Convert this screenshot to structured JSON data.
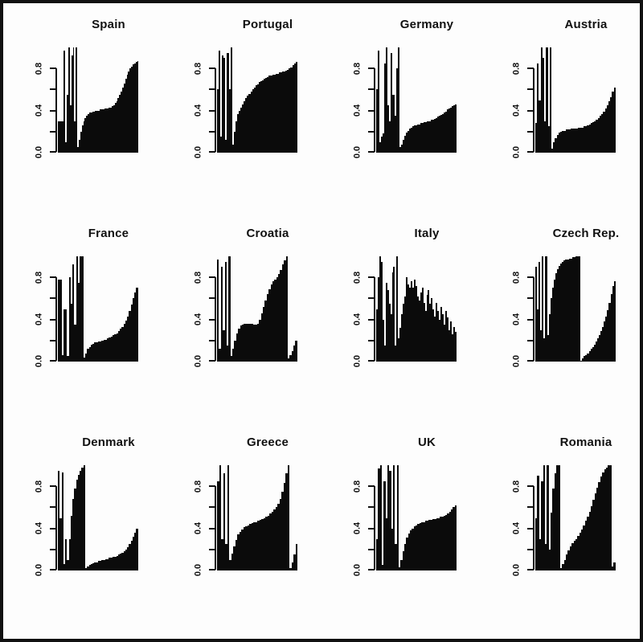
{
  "figure": {
    "background_color": "#fdfdfd",
    "frame_color": "#111111",
    "bar_color": "#0b0b0b",
    "axis_color": "#111111"
  },
  "chart_data": {
    "type": "bar",
    "description": "Grid of 12 black bar-profile plots, one per country",
    "layout": {
      "rows": 3,
      "cols": 4
    },
    "ylim": [
      0,
      1
    ],
    "grid": "off",
    "legend": "none",
    "axis": {
      "tick_labels": [
        "0.0",
        "0.4",
        "0.8"
      ],
      "tick_values": [
        0.0,
        0.2,
        0.4,
        0.6,
        0.8
      ],
      "labeled_values": [
        0.0,
        0.4,
        0.8
      ]
    },
    "panels": [
      {
        "title": "Spain",
        "values": [
          0.3,
          0.3,
          0.3,
          0.3,
          0.97,
          0.1,
          0.55,
          1.0,
          0.45,
          0.92,
          1.0,
          0.3,
          1.0,
          0.05,
          0.12,
          0.2,
          0.26,
          0.3,
          0.33,
          0.35,
          0.37,
          0.38,
          0.38,
          0.39,
          0.39,
          0.4,
          0.4,
          0.4,
          0.41,
          0.41,
          0.41,
          0.42,
          0.42,
          0.42,
          0.43,
          0.43,
          0.44,
          0.45,
          0.47,
          0.49,
          0.52,
          0.55,
          0.58,
          0.62,
          0.66,
          0.7,
          0.74,
          0.77,
          0.8,
          0.82,
          0.84,
          0.85,
          0.86,
          0.87
        ]
      },
      {
        "title": "Portugal",
        "values": [
          0.6,
          0.97,
          0.15,
          0.92,
          0.9,
          0.12,
          0.95,
          0.6,
          1.0,
          0.08,
          0.2,
          0.3,
          0.37,
          0.4,
          0.43,
          0.46,
          0.49,
          0.52,
          0.54,
          0.56,
          0.58,
          0.6,
          0.62,
          0.64,
          0.65,
          0.67,
          0.68,
          0.69,
          0.7,
          0.71,
          0.72,
          0.73,
          0.73,
          0.74,
          0.74,
          0.75,
          0.75,
          0.76,
          0.76,
          0.77,
          0.77,
          0.78,
          0.79,
          0.8,
          0.81,
          0.83,
          0.85,
          0.86
        ]
      },
      {
        "title": "Germany",
        "values": [
          0.6,
          0.97,
          0.1,
          0.15,
          0.18,
          0.85,
          1.0,
          0.45,
          0.3,
          0.95,
          0.55,
          0.35,
          0.8,
          1.0,
          0.05,
          0.08,
          0.12,
          0.16,
          0.19,
          0.21,
          0.23,
          0.24,
          0.25,
          0.26,
          0.26,
          0.27,
          0.27,
          0.28,
          0.28,
          0.29,
          0.29,
          0.3,
          0.3,
          0.31,
          0.31,
          0.32,
          0.33,
          0.34,
          0.35,
          0.36,
          0.37,
          0.38,
          0.39,
          0.41,
          0.42,
          0.43,
          0.44,
          0.45,
          0.46
        ]
      },
      {
        "title": "Austria",
        "values": [
          0.28,
          0.85,
          0.5,
          1.0,
          0.9,
          0.3,
          1.0,
          0.25,
          1.0,
          0.04,
          0.1,
          0.14,
          0.17,
          0.19,
          0.2,
          0.21,
          0.21,
          0.22,
          0.22,
          0.22,
          0.23,
          0.23,
          0.23,
          0.23,
          0.24,
          0.24,
          0.24,
          0.25,
          0.25,
          0.26,
          0.27,
          0.28,
          0.29,
          0.3,
          0.31,
          0.33,
          0.35,
          0.37,
          0.39,
          0.42,
          0.45,
          0.49,
          0.53,
          0.58,
          0.62
        ]
      },
      {
        "title": "France",
        "values": [
          0.78,
          0.78,
          0.06,
          0.5,
          0.5,
          0.05,
          0.8,
          0.55,
          0.92,
          0.35,
          1.0,
          0.75,
          1.0,
          1.0,
          0.04,
          0.08,
          0.12,
          0.14,
          0.16,
          0.17,
          0.18,
          0.18,
          0.19,
          0.19,
          0.2,
          0.21,
          0.21,
          0.22,
          0.23,
          0.24,
          0.25,
          0.26,
          0.27,
          0.29,
          0.31,
          0.33,
          0.36,
          0.39,
          0.43,
          0.48,
          0.54,
          0.6,
          0.66,
          0.7
        ]
      },
      {
        "title": "Croatia",
        "values": [
          0.97,
          0.12,
          0.9,
          0.3,
          0.95,
          0.15,
          1.0,
          0.05,
          0.12,
          0.2,
          0.27,
          0.31,
          0.34,
          0.35,
          0.36,
          0.36,
          0.36,
          0.36,
          0.36,
          0.35,
          0.35,
          0.36,
          0.4,
          0.46,
          0.52,
          0.58,
          0.64,
          0.69,
          0.73,
          0.76,
          0.78,
          0.8,
          0.83,
          0.87,
          0.92,
          0.96,
          1.0,
          0.03,
          0.06,
          0.1,
          0.15,
          0.2
        ]
      },
      {
        "title": "Italy",
        "values": [
          0.5,
          0.8,
          1.0,
          0.95,
          0.4,
          0.15,
          0.75,
          0.68,
          0.55,
          0.45,
          0.85,
          0.9,
          0.15,
          1.0,
          0.22,
          0.32,
          0.45,
          0.55,
          0.62,
          0.8,
          0.73,
          0.7,
          0.76,
          0.7,
          0.78,
          0.72,
          0.62,
          0.58,
          0.66,
          0.7,
          0.56,
          0.48,
          0.63,
          0.68,
          0.55,
          0.6,
          0.5,
          0.43,
          0.56,
          0.48,
          0.4,
          0.52,
          0.45,
          0.35,
          0.48,
          0.42,
          0.3,
          0.38,
          0.26,
          0.33,
          0.28
        ]
      },
      {
        "title": "Czech Rep.",
        "values": [
          0.9,
          0.5,
          0.95,
          0.3,
          1.0,
          0.22,
          1.0,
          0.25,
          0.45,
          0.6,
          0.7,
          0.78,
          0.84,
          0.88,
          0.91,
          0.93,
          0.95,
          0.96,
          0.97,
          0.97,
          0.98,
          0.98,
          0.99,
          0.99,
          1.0,
          1.0,
          1.0,
          0.01,
          0.03,
          0.05,
          0.06,
          0.08,
          0.1,
          0.12,
          0.14,
          0.16,
          0.19,
          0.22,
          0.25,
          0.29,
          0.33,
          0.38,
          0.43,
          0.49,
          0.56,
          0.64,
          0.72,
          0.76
        ]
      },
      {
        "title": "Denmark",
        "values": [
          0.95,
          0.5,
          0.93,
          0.06,
          0.3,
          0.1,
          0.3,
          0.52,
          0.68,
          0.78,
          0.86,
          0.91,
          0.95,
          0.98,
          1.0,
          0.02,
          0.04,
          0.05,
          0.06,
          0.07,
          0.08,
          0.08,
          0.09,
          0.09,
          0.1,
          0.1,
          0.11,
          0.11,
          0.12,
          0.12,
          0.13,
          0.13,
          0.14,
          0.15,
          0.16,
          0.17,
          0.18,
          0.2,
          0.22,
          0.25,
          0.28,
          0.32,
          0.36,
          0.4
        ]
      },
      {
        "title": "Greece",
        "values": [
          0.85,
          1.0,
          0.3,
          0.92,
          0.25,
          1.0,
          0.1,
          0.16,
          0.23,
          0.29,
          0.34,
          0.37,
          0.39,
          0.41,
          0.42,
          0.43,
          0.44,
          0.45,
          0.46,
          0.46,
          0.47,
          0.48,
          0.49,
          0.5,
          0.51,
          0.52,
          0.54,
          0.56,
          0.58,
          0.6,
          0.63,
          0.68,
          0.75,
          0.83,
          0.92,
          1.0,
          0.02,
          0.08,
          0.15,
          0.25
        ]
      },
      {
        "title": "UK",
        "values": [
          0.3,
          0.97,
          1.0,
          0.05,
          0.85,
          0.5,
          1.0,
          0.95,
          0.4,
          1.0,
          0.25,
          1.0,
          0.03,
          0.1,
          0.18,
          0.25,
          0.31,
          0.35,
          0.38,
          0.4,
          0.42,
          0.43,
          0.44,
          0.45,
          0.46,
          0.46,
          0.47,
          0.47,
          0.48,
          0.48,
          0.49,
          0.49,
          0.5,
          0.5,
          0.51,
          0.51,
          0.52,
          0.53,
          0.54,
          0.56,
          0.58,
          0.6,
          0.62
        ]
      },
      {
        "title": "Romania",
        "values": [
          0.5,
          0.9,
          0.3,
          0.85,
          1.0,
          0.25,
          1.0,
          0.2,
          0.55,
          0.78,
          0.92,
          1.0,
          1.0,
          0.02,
          0.06,
          0.1,
          0.15,
          0.19,
          0.23,
          0.26,
          0.28,
          0.3,
          0.33,
          0.36,
          0.39,
          0.43,
          0.47,
          0.51,
          0.56,
          0.61,
          0.67,
          0.73,
          0.79,
          0.84,
          0.89,
          0.93,
          0.96,
          0.98,
          1.0,
          1.0,
          0.04,
          0.08
        ]
      }
    ]
  }
}
